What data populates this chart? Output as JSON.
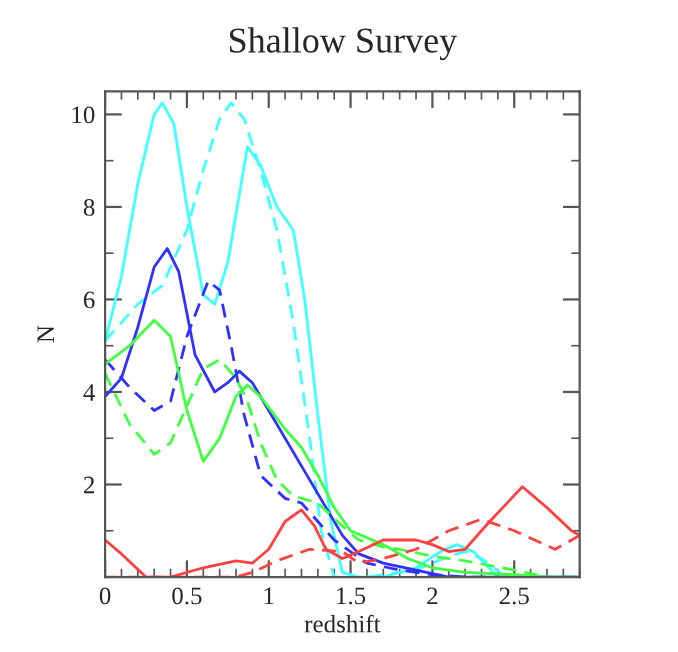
{
  "chart_data": {
    "type": "line",
    "title": "Shallow Survey",
    "xlabel": "redshift",
    "ylabel": "N",
    "xlim": [
      0,
      2.9
    ],
    "ylim": [
      0,
      10.5
    ],
    "xticks": [
      0,
      0.5,
      1,
      1.5,
      2,
      2.5
    ],
    "yticks": [
      2,
      4,
      6,
      8,
      10
    ],
    "grid": false,
    "legend": false,
    "series": [
      {
        "color": "#40ffff",
        "line_style": "solid",
        "x": [
          0,
          0.1,
          0.2,
          0.3,
          0.35,
          0.42,
          0.5,
          0.6,
          0.67,
          0.75,
          0.87,
          0.95,
          1.05,
          1.15,
          1.22,
          1.3,
          1.38,
          1.45,
          1.55,
          1.7,
          1.9,
          2.05,
          2.15,
          2.25,
          2.4,
          2.9
        ],
        "values": [
          5.1,
          6.5,
          8.5,
          10.0,
          10.25,
          9.8,
          8.0,
          6.1,
          5.9,
          6.8,
          9.3,
          8.9,
          8.0,
          7.5,
          6.0,
          3.5,
          1.2,
          0.1,
          0,
          0,
          0.2,
          0.55,
          0.7,
          0.55,
          0,
          0
        ]
      },
      {
        "color": "#40ffff",
        "line_style": "dashed",
        "x": [
          0,
          0.2,
          0.35,
          0.5,
          0.6,
          0.7,
          0.77,
          0.85,
          0.95,
          1.05,
          1.15,
          1.25,
          1.32,
          1.4,
          1.6,
          1.9,
          2.1,
          2.2,
          2.3,
          2.45,
          2.9
        ],
        "values": [
          5.1,
          5.9,
          6.3,
          7.5,
          8.8,
          9.9,
          10.25,
          9.9,
          8.8,
          7.5,
          5.5,
          3.0,
          1.0,
          0,
          0,
          0.15,
          0.45,
          0.55,
          0.4,
          0,
          0
        ]
      },
      {
        "color": "#3030ff",
        "line_style": "solid",
        "x": [
          0,
          0.1,
          0.2,
          0.3,
          0.38,
          0.45,
          0.55,
          0.67,
          0.75,
          0.82,
          0.9,
          1.0,
          1.15,
          1.25,
          1.35,
          1.45,
          1.55,
          1.7,
          1.9,
          2.1,
          2.9
        ],
        "values": [
          3.9,
          4.3,
          5.4,
          6.7,
          7.1,
          6.6,
          4.8,
          4.0,
          4.2,
          4.45,
          4.2,
          3.6,
          2.7,
          2.1,
          1.5,
          0.9,
          0.5,
          0.3,
          0.15,
          0,
          0
        ]
      },
      {
        "color": "#3030ff",
        "line_style": "dashed",
        "x": [
          0,
          0.15,
          0.3,
          0.4,
          0.5,
          0.63,
          0.7,
          0.77,
          0.85,
          0.95,
          1.1,
          1.2,
          1.3,
          1.4,
          1.6,
          1.8,
          2.0,
          2.2,
          2.9
        ],
        "values": [
          4.7,
          4.1,
          3.6,
          3.8,
          5.2,
          6.4,
          6.2,
          5.0,
          3.5,
          2.2,
          1.7,
          1.6,
          1.2,
          0.8,
          0.3,
          0.15,
          0.05,
          0,
          0
        ]
      },
      {
        "color": "#40ff40",
        "line_style": "solid",
        "x": [
          0,
          0.15,
          0.3,
          0.4,
          0.5,
          0.6,
          0.7,
          0.8,
          0.87,
          0.95,
          1.1,
          1.2,
          1.3,
          1.4,
          1.5,
          1.7,
          1.85,
          2.0,
          2.2,
          2.5,
          2.7,
          2.9
        ],
        "values": [
          4.6,
          5.0,
          5.55,
          5.2,
          3.6,
          2.5,
          3.0,
          3.9,
          4.15,
          3.9,
          3.2,
          2.8,
          2.2,
          1.5,
          1.0,
          0.7,
          0.4,
          0.2,
          0.1,
          0.05,
          0,
          0
        ]
      },
      {
        "color": "#40ff40",
        "line_style": "dashed",
        "x": [
          0,
          0.15,
          0.3,
          0.4,
          0.5,
          0.6,
          0.7,
          0.8,
          0.87,
          0.95,
          1.05,
          1.15,
          1.3,
          1.45,
          1.55,
          1.7,
          1.8,
          2.0,
          2.2,
          2.5,
          2.7,
          2.9
        ],
        "values": [
          4.4,
          3.3,
          2.65,
          2.9,
          3.7,
          4.5,
          4.7,
          4.3,
          3.8,
          2.9,
          2.1,
          1.75,
          1.6,
          1.1,
          0.8,
          0.65,
          0.6,
          0.45,
          0.35,
          0.15,
          0,
          0
        ]
      },
      {
        "color": "#ff4040",
        "line_style": "solid",
        "x": [
          0,
          0.1,
          0.25,
          0.4,
          0.6,
          0.8,
          0.9,
          1.0,
          1.1,
          1.2,
          1.28,
          1.35,
          1.45,
          1.55,
          1.7,
          1.9,
          2.0,
          2.1,
          2.2,
          2.35,
          2.55,
          2.7,
          2.85,
          2.9
        ],
        "values": [
          0.8,
          0.5,
          0,
          0,
          0.2,
          0.35,
          0.3,
          0.6,
          1.2,
          1.45,
          1.1,
          0.6,
          0.4,
          0.55,
          0.8,
          0.8,
          0.7,
          0.55,
          0.6,
          1.2,
          1.95,
          1.5,
          1.0,
          0.9
        ]
      },
      {
        "color": "#ff4040",
        "line_style": "dashed",
        "x": [
          0,
          0.8,
          0.9,
          1.05,
          1.25,
          1.45,
          1.55,
          1.7,
          1.9,
          2.1,
          2.3,
          2.5,
          2.75,
          2.9
        ],
        "values": [
          0,
          0,
          0.1,
          0.35,
          0.6,
          0.55,
          0.3,
          0.4,
          0.6,
          1.0,
          1.25,
          1.0,
          0.6,
          0.9
        ]
      }
    ]
  }
}
